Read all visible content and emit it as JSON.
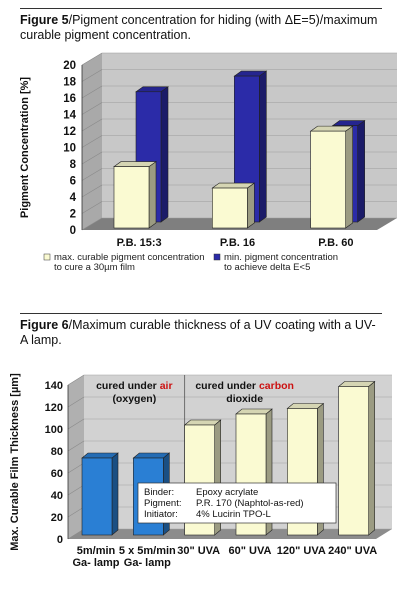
{
  "figure5": {
    "label": "Figure 5",
    "caption": "/Pigment concentration for hiding (with ΔE=5)/maximum curable pigment concentration.",
    "chart_data": {
      "type": "bar",
      "ylabel": "Pigment Concentration [%]",
      "ylim": [
        0,
        20
      ],
      "yticks": [
        "0",
        "2",
        "4",
        "6",
        "8",
        "10",
        "12",
        "14",
        "16",
        "18",
        "20"
      ],
      "categories": [
        "P.B. 15:3",
        "P.B. 16",
        "P.B. 60"
      ],
      "series": [
        {
          "name": "max. curable pigment concentration to cure a 30µm film",
          "values": [
            7.2,
            4.6,
            11.5
          ],
          "color": "#fafad2"
        },
        {
          "name": "min. pigment concentration to achieve delta E<5",
          "values": [
            15.3,
            17.2,
            11.2
          ],
          "color": "#2b2ba8"
        }
      ],
      "legend": [
        {
          "line1": "max. curable pigment concentration",
          "line2": "to cure a 30µm film",
          "color": "#fafad2"
        },
        {
          "line1": "min. pigment concentration",
          "line2": "to achieve delta E<5",
          "color": "#2b2ba8"
        }
      ]
    }
  },
  "figure6": {
    "label": "Figure 6",
    "caption": "/Maximum curable thickness of a UV coating with a UV-A lamp.",
    "chart_data": {
      "type": "bar",
      "ylabel": "Max. Curable Film Thickness [µm]",
      "ylim": [
        0,
        140
      ],
      "yticks": [
        "0",
        "20",
        "40",
        "60",
        "80",
        "100",
        "120",
        "140"
      ],
      "categories": [
        {
          "line1": "5m/min",
          "line2": "Ga- lamp"
        },
        {
          "line1": "5 x 5m/min",
          "line2": "Ga- lamp"
        },
        {
          "line1": "30\" UVA",
          "line2": ""
        },
        {
          "line1": "60\" UVA",
          "line2": ""
        },
        {
          "line1": "120\" UVA",
          "line2": ""
        },
        {
          "line1": "240\" UVA",
          "line2": ""
        }
      ],
      "values": [
        70,
        70,
        100,
        110,
        115,
        135
      ],
      "colors": [
        "#2a7fd4",
        "#2a7fd4",
        "#fafad2",
        "#fafad2",
        "#fafad2",
        "#fafad2"
      ],
      "annotations": {
        "air": {
          "prefix": "cured under ",
          "highlight": "air",
          "line2": "(oxygen)"
        },
        "carbon": {
          "prefix": "cured under ",
          "highlight": "carbon",
          "line2": "dioxide"
        },
        "highlight_color": "#cc1111",
        "note": [
          {
            "label": "Binder:",
            "value": "Epoxy acrylate"
          },
          {
            "label": "Pigment:",
            "value": "P.R. 170 (Naphtol-as-red)"
          },
          {
            "label": "Initiator:",
            "value": "4% Lucirin TPO-L"
          }
        ]
      }
    }
  }
}
